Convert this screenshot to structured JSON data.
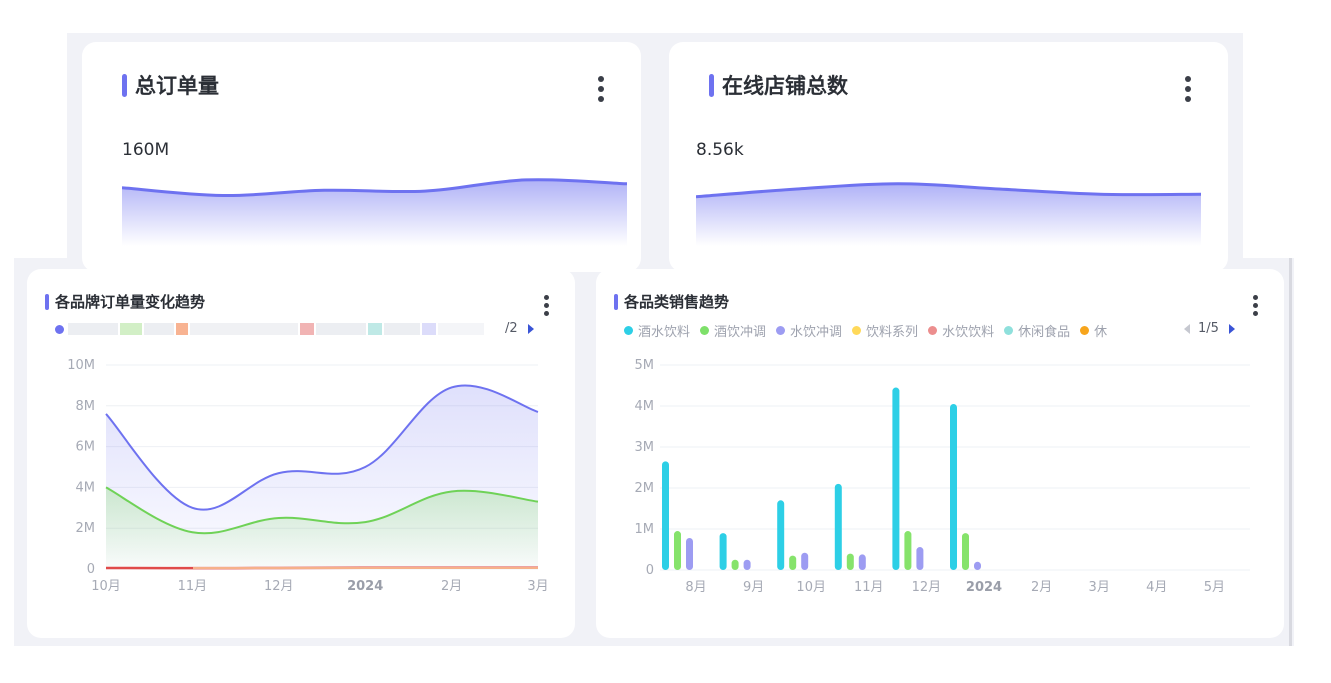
{
  "kpi_cards": [
    {
      "title": "总订单量",
      "value": "160M"
    },
    {
      "title": "在线店铺总数",
      "value": "8.56k"
    }
  ],
  "brand_card": {
    "title": "各品牌订单量变化趋势",
    "legend_page": "/2"
  },
  "category_card": {
    "title": "各品类销售趋势",
    "legend": [
      "酒水饮料",
      "酒饮冲调",
      "水饮冲调",
      "饮料系列",
      "水饮饮料",
      "休闲食品",
      "休"
    ],
    "legend_page": "1/5"
  },
  "colors": {
    "accent": "#6e72f0",
    "green": "#7ee06a",
    "cyan": "#2dcfe6",
    "purple": "#9d9cf2",
    "yellow": "#ffd95a",
    "red": "#ec8e8e",
    "teal": "#8fe0dc",
    "orange": "#f7a51c"
  },
  "chart_data": [
    {
      "type": "area",
      "title": "总订单量",
      "values": [
        0.55,
        0.25,
        0.45,
        0.42,
        0.85,
        0.7
      ]
    },
    {
      "type": "area",
      "title": "在线店铺总数",
      "values": [
        0.2,
        0.5,
        0.7,
        0.5,
        0.3,
        0.3
      ]
    },
    {
      "type": "area",
      "title": "各品牌订单量变化趋势",
      "categories": [
        "10月",
        "11月",
        "12月",
        "2024",
        "2月",
        "3月"
      ],
      "ylim": [
        0,
        10000000
      ],
      "yticks": [
        "0",
        "2M",
        "4M",
        "6M",
        "8M",
        "10M"
      ],
      "series": [
        {
          "values": [
            7600000,
            3000000,
            4700000,
            5000000,
            8900000,
            7700000
          ]
        },
        {
          "values": [
            4000000,
            1800000,
            2500000,
            2300000,
            3800000,
            3300000
          ]
        },
        {
          "values": [
            50000,
            40000,
            50000,
            60000,
            60000,
            60000
          ]
        }
      ]
    },
    {
      "type": "bar",
      "title": "各品类销售趋势",
      "categories": [
        "8月",
        "9月",
        "10月",
        "11月",
        "12月",
        "2024",
        "2月",
        "3月",
        "4月",
        "5月"
      ],
      "ylim": [
        0,
        5000000
      ],
      "yticks": [
        "0",
        "1M",
        "2M",
        "3M",
        "4M",
        "5M"
      ],
      "series": [
        {
          "name": "酒水饮料",
          "values": [
            2650000,
            900000,
            1700000,
            2100000,
            4450000,
            4050000,
            0,
            0,
            0,
            0
          ]
        },
        {
          "name": "酒饮冲调",
          "values": [
            950000,
            250000,
            350000,
            400000,
            950000,
            900000,
            0,
            0,
            0,
            0
          ]
        },
        {
          "name": "水饮冲调",
          "values": [
            780000,
            250000,
            420000,
            380000,
            560000,
            200000,
            0,
            0,
            0,
            0
          ]
        }
      ]
    }
  ]
}
